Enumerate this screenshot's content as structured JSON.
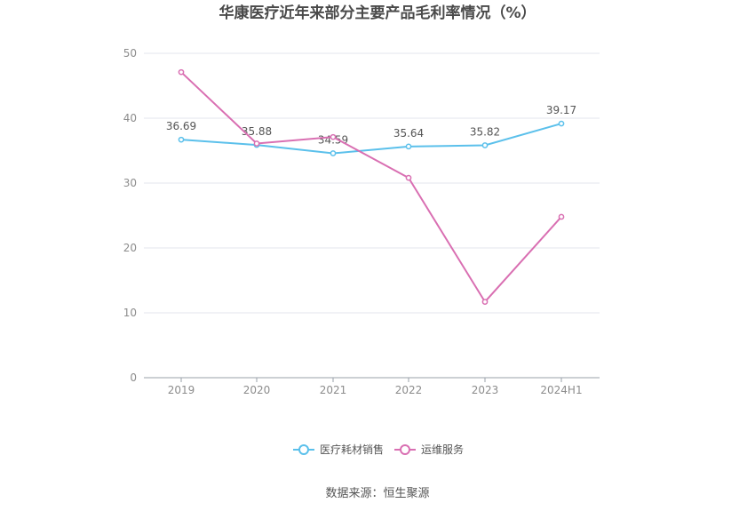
{
  "chart_data": {
    "type": "line",
    "title": "华康医疗近年来部分主要产品毛利率情况（%）",
    "categories": [
      "2019",
      "2020",
      "2021",
      "2022",
      "2023",
      "2024H1"
    ],
    "ylim": [
      0,
      50
    ],
    "yticks": [
      0,
      10,
      20,
      30,
      40,
      50
    ],
    "grid": true,
    "legend_position": "bottom",
    "series": [
      {
        "name": "医疗耗材销售",
        "color": "#5bc0eb",
        "values": [
          36.69,
          35.88,
          34.59,
          35.64,
          35.82,
          39.17
        ],
        "labels": [
          "36.69",
          "35.88",
          "34.59",
          "35.64",
          "35.82",
          "39.17"
        ]
      },
      {
        "name": "运维服务",
        "color": "#d96fb2",
        "values": [
          47.1,
          36.1,
          37.1,
          30.8,
          11.7,
          24.8
        ]
      }
    ],
    "source": "数据来源：恒生聚源"
  }
}
